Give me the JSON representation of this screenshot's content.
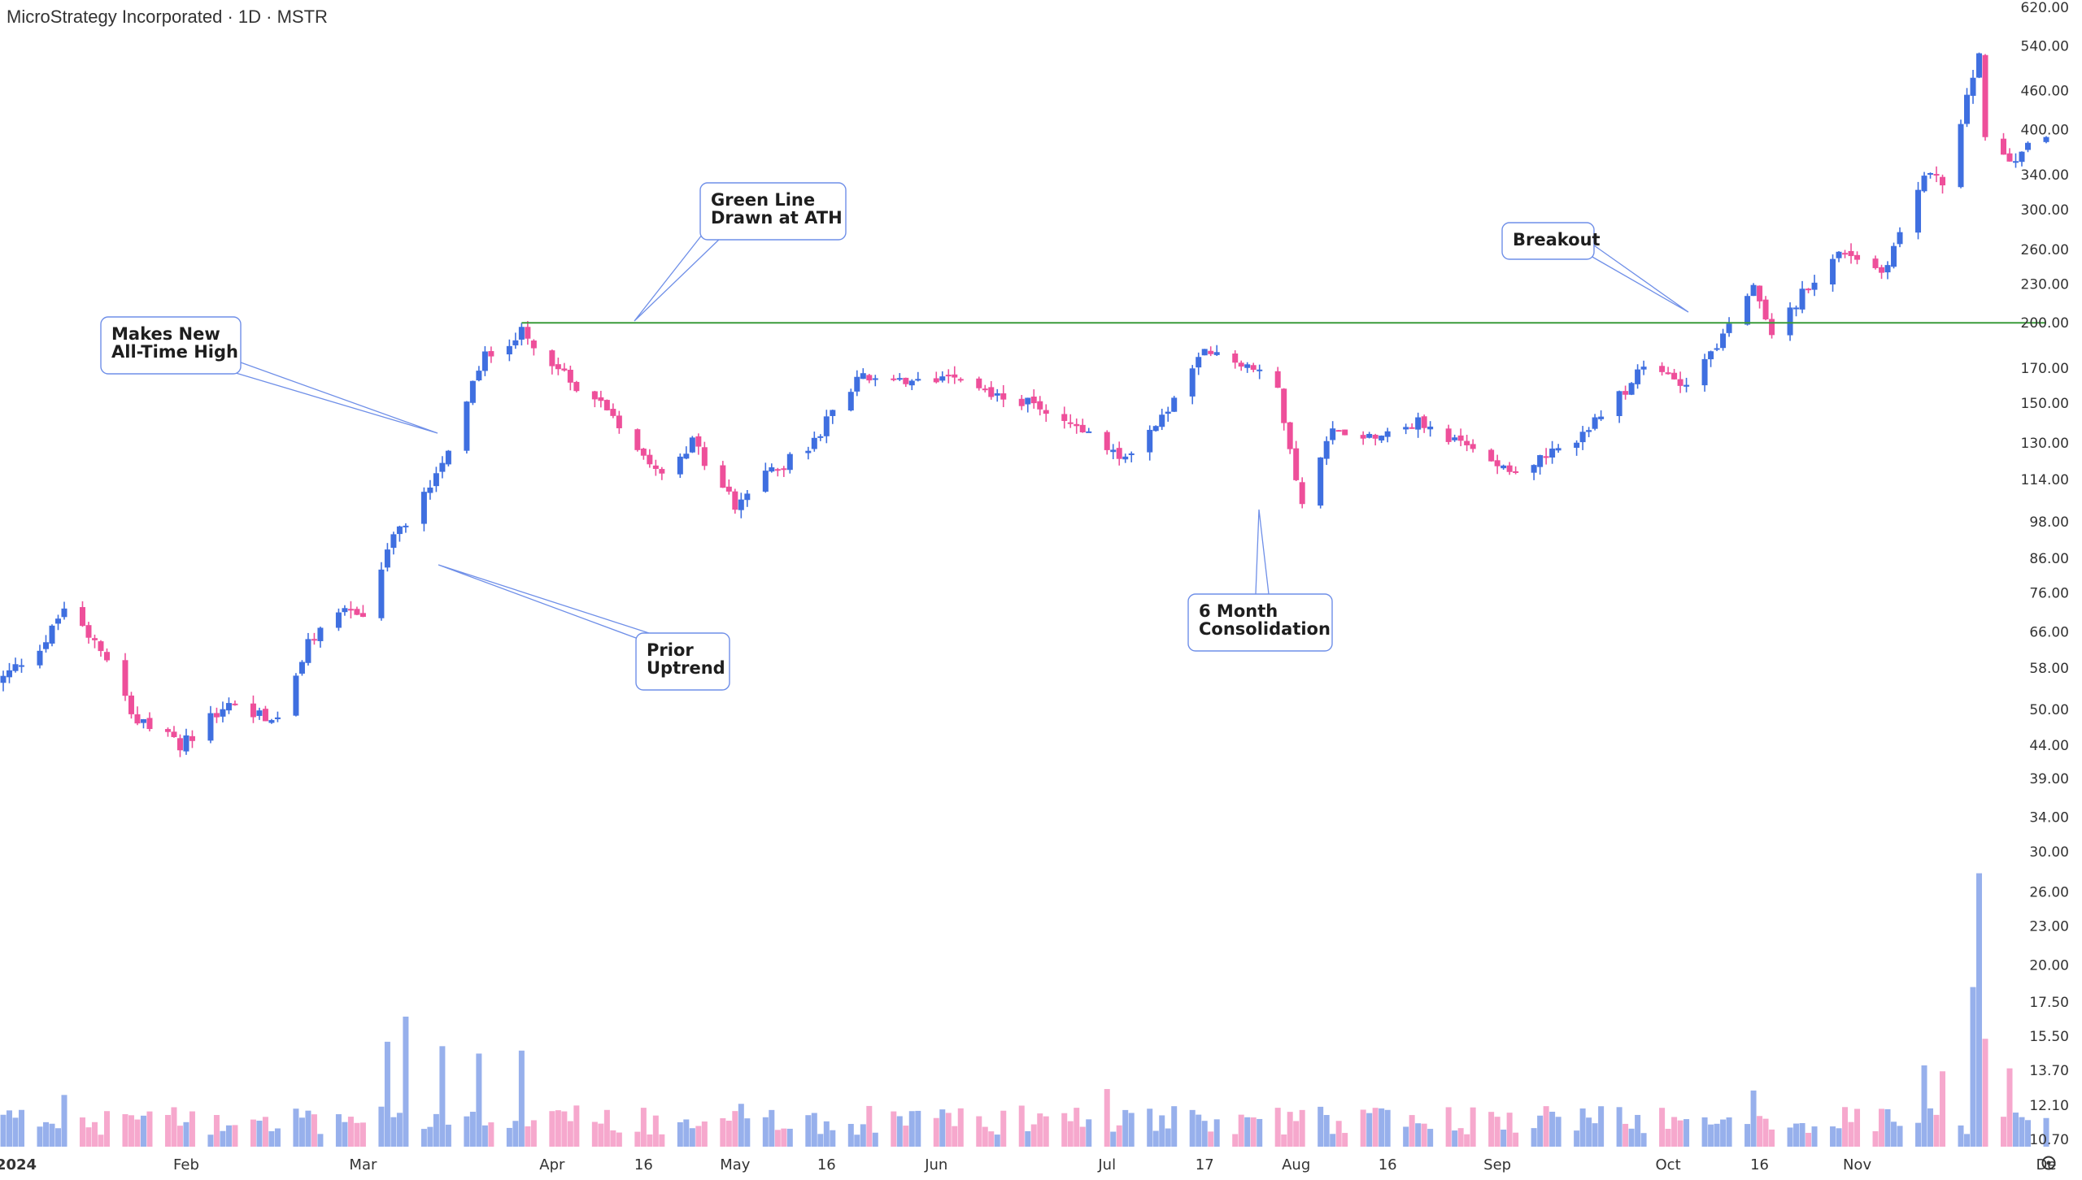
{
  "header": {
    "title": "MicroStrategy Incorporated · 1D · MSTR"
  },
  "chart_data": {
    "type": "candlestick",
    "title": "MicroStrategy Incorporated · 1D · MSTR",
    "scale": "log",
    "ylim": [
      10.7,
      620
    ],
    "price_ticks": [
      620,
      540,
      460,
      400,
      340,
      300,
      260,
      230,
      200,
      170,
      150,
      130,
      114,
      98,
      86,
      76,
      66,
      58,
      50,
      44,
      39,
      34,
      30,
      26,
      23,
      20,
      17.5,
      15.5,
      13.7,
      12.1,
      10.7
    ],
    "price_tick_labels": [
      "620.00",
      "540.00",
      "460.00",
      "400.00",
      "340.00",
      "300.00",
      "260.00",
      "230.00",
      "200.00",
      "170.00",
      "150.00",
      "130.00",
      "114.00",
      "98.00",
      "86.00",
      "76.00",
      "66.00",
      "58.00",
      "50.00",
      "44.00",
      "39.00",
      "34.00",
      "30.00",
      "26.00",
      "23.00",
      "20.00",
      "17.50",
      "15.50",
      "13.70",
      "12.10",
      "10.70"
    ],
    "x_ticks": [
      "2024",
      "Feb",
      "Mar",
      "Apr",
      "16",
      "May",
      "16",
      "Jun",
      "Jul",
      "17",
      "Aug",
      "16",
      "Sep",
      "Oct",
      "16",
      "Nov",
      "De"
    ],
    "x_tick_dates": [
      "2024-01-02",
      "2024-02-01",
      "2024-03-01",
      "2024-04-01",
      "2024-04-16",
      "2024-05-01",
      "2024-05-16",
      "2024-06-03",
      "2024-07-01",
      "2024-07-17",
      "2024-08-01",
      "2024-08-16",
      "2024-09-03",
      "2024-10-01",
      "2024-10-16",
      "2024-11-01",
      "2024-12-02"
    ],
    "ath_line": {
      "value": 200,
      "color": "#3a9b3a",
      "start_date": "2024-03-27"
    },
    "colors": {
      "up": "#3f6fe0",
      "down": "#ee4f9a",
      "vol_up": "#97b0ec",
      "vol_down": "#f6a8cd"
    },
    "annotations": [
      {
        "label_lines": [
          "Makes New",
          "All-Time High"
        ]
      },
      {
        "label_lines": [
          "Green Line",
          "Drawn at ATH"
        ]
      },
      {
        "label_lines": [
          "Prior",
          "Uptrend"
        ]
      },
      {
        "label_lines": [
          "6 Month",
          "Consolidation"
        ]
      },
      {
        "label_lines": [
          "Breakout"
        ]
      }
    ],
    "series": [
      {
        "name": "MSTR",
        "x_start": "2024-01-02",
        "x_end": "2024-12-02",
        "close_points": [
          [
            "2024-01-02",
            56
          ],
          [
            "2024-01-09",
            64
          ],
          [
            "2024-01-12",
            72
          ],
          [
            "2024-01-18",
            63
          ],
          [
            "2024-01-24",
            48
          ],
          [
            "2024-01-31",
            44
          ],
          [
            "2024-02-08",
            51
          ],
          [
            "2024-02-16",
            48
          ],
          [
            "2024-02-21",
            63
          ],
          [
            "2024-02-26",
            72
          ],
          [
            "2024-03-01",
            70
          ],
          [
            "2024-03-06",
            93
          ],
          [
            "2024-03-11",
            108
          ],
          [
            "2024-03-15",
            128
          ],
          [
            "2024-03-21",
            178
          ],
          [
            "2024-03-27",
            193
          ],
          [
            "2024-04-03",
            165
          ],
          [
            "2024-04-10",
            148
          ],
          [
            "2024-04-15",
            128
          ],
          [
            "2024-04-19",
            118
          ],
          [
            "2024-04-24",
            130
          ],
          [
            "2024-05-01",
            104
          ],
          [
            "2024-05-07",
            118
          ],
          [
            "2024-05-13",
            127
          ],
          [
            "2024-05-21",
            165
          ],
          [
            "2024-05-30",
            160
          ],
          [
            "2024-06-06",
            168
          ],
          [
            "2024-06-12",
            155
          ],
          [
            "2024-06-20",
            148
          ],
          [
            "2024-06-28",
            135
          ],
          [
            "2024-07-03",
            122
          ],
          [
            "2024-07-10",
            142
          ],
          [
            "2024-07-17",
            180
          ],
          [
            "2024-07-24",
            172
          ],
          [
            "2024-07-29",
            158
          ],
          [
            "2024-08-02",
            104
          ],
          [
            "2024-08-07",
            136
          ],
          [
            "2024-08-14",
            134
          ],
          [
            "2024-08-21",
            140
          ],
          [
            "2024-08-29",
            128
          ],
          [
            "2024-09-06",
            118
          ],
          [
            "2024-09-13",
            126
          ],
          [
            "2024-09-20",
            142
          ],
          [
            "2024-09-27",
            170
          ],
          [
            "2024-10-04",
            162
          ],
          [
            "2024-10-10",
            190
          ],
          [
            "2024-10-15",
            225
          ],
          [
            "2024-10-18",
            188
          ],
          [
            "2024-10-24",
            230
          ],
          [
            "2024-10-30",
            260
          ],
          [
            "2024-11-05",
            240
          ],
          [
            "2024-11-08",
            275
          ],
          [
            "2024-11-12",
            340
          ],
          [
            "2024-11-15",
            330
          ],
          [
            "2024-11-19",
            445
          ],
          [
            "2024-11-21",
            520
          ],
          [
            "2024-11-22",
            397
          ],
          [
            "2024-11-26",
            350
          ],
          [
            "2024-11-29",
            385
          ],
          [
            "2024-12-02",
            390
          ]
        ],
        "volume_range": [
          10.7,
          30
        ],
        "volume_spikes": [
          [
            "2024-01-12",
            14.2
          ],
          [
            "2024-03-05",
            17.8
          ],
          [
            "2024-03-08",
            19.5
          ],
          [
            "2024-03-14",
            17.5
          ],
          [
            "2024-03-20",
            17.0
          ],
          [
            "2024-03-27",
            17.2
          ],
          [
            "2024-05-02",
            13.6
          ],
          [
            "2024-07-01",
            14.6
          ],
          [
            "2024-08-05",
            13.4
          ],
          [
            "2024-10-15",
            14.5
          ],
          [
            "2024-11-12",
            16.2
          ],
          [
            "2024-11-15",
            15.8
          ],
          [
            "2024-11-20",
            21.5
          ],
          [
            "2024-11-21",
            29.2
          ],
          [
            "2024-11-22",
            18.0
          ],
          [
            "2024-11-26",
            16.0
          ]
        ]
      }
    ]
  }
}
